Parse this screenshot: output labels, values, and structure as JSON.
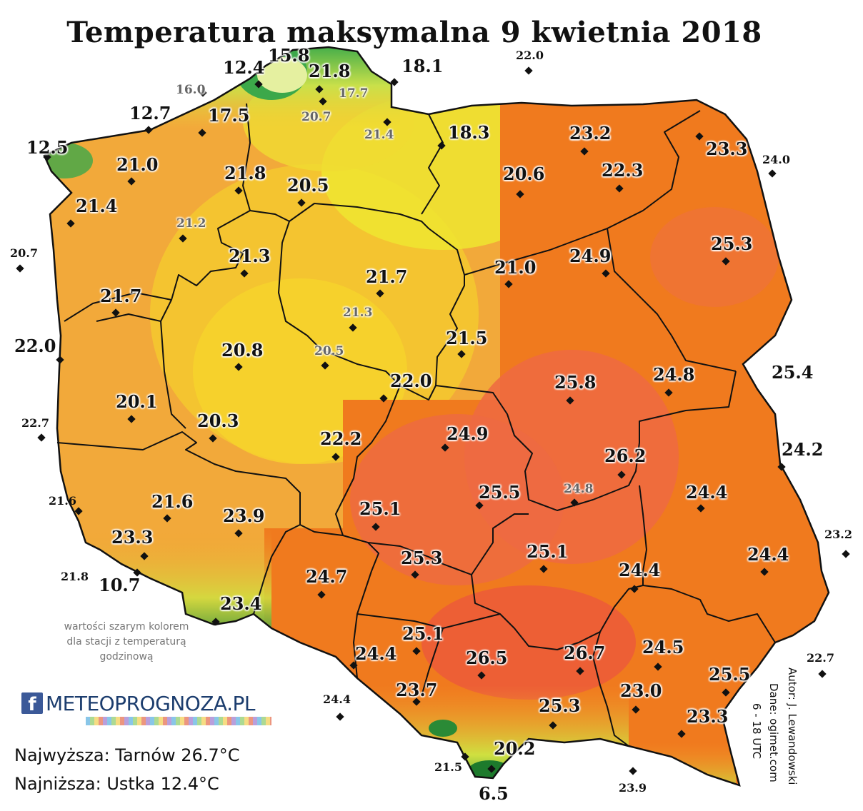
{
  "title": "Temperatura maksymalna 9 kwietnia 2018",
  "note": "wartości szarym kolorem dla stacji z temperaturą godzinową",
  "logo": {
    "icon": "f",
    "text": "METEOPROGNOZA.PL"
  },
  "stats": {
    "highest": "Najwyższa: Tarnów 26.7°C",
    "lowest": "Najniższa: Ustka 12.4°C"
  },
  "credits": {
    "author": "Autor: J. Lewandowski",
    "data": "Dane: ogimet.com",
    "hours": "6 - 18 UTC"
  },
  "colors": {
    "green": "#3fb34a",
    "yellow_green": "#e8e63a",
    "yellow": "#f4cc2e",
    "orange_light": "#f4a83a",
    "orange": "#f07a1e",
    "red_orange": "#ef6b45",
    "border": "#111111",
    "gray_value": "#666666"
  },
  "values": [
    {
      "t": "12.4",
      "style": "main"
    },
    {
      "t": "15.8",
      "style": "main"
    },
    {
      "t": "21.8",
      "style": "main"
    },
    {
      "t": "17.7",
      "style": "gray"
    },
    {
      "t": "18.1",
      "style": "big"
    },
    {
      "t": "22.0",
      "style": "small"
    },
    {
      "t": "16.0",
      "style": "gray"
    },
    {
      "t": "20.7",
      "style": "gray"
    },
    {
      "t": "12.7",
      "style": "main"
    },
    {
      "t": "17.5",
      "style": "main"
    },
    {
      "t": "21.4",
      "style": "gray"
    },
    {
      "t": "18.3",
      "style": "main"
    },
    {
      "t": "23.2",
      "style": "main"
    },
    {
      "t": "23.3",
      "style": "main"
    },
    {
      "t": "12.5",
      "style": "main"
    },
    {
      "t": "21.0",
      "style": "main"
    },
    {
      "t": "21.8",
      "style": "main"
    },
    {
      "t": "20.5",
      "style": "main"
    },
    {
      "t": "20.6",
      "style": "main"
    },
    {
      "t": "22.3",
      "style": "main"
    },
    {
      "t": "24.0",
      "style": "small"
    },
    {
      "t": "21.4",
      "style": "main"
    },
    {
      "t": "21.2",
      "style": "gray"
    },
    {
      "t": "25.3",
      "style": "main"
    },
    {
      "t": "20.7",
      "style": "small"
    },
    {
      "t": "21.3",
      "style": "main"
    },
    {
      "t": "21.7",
      "style": "main"
    },
    {
      "t": "21.0",
      "style": "main"
    },
    {
      "t": "24.9",
      "style": "main"
    },
    {
      "t": "21.7",
      "style": "main"
    },
    {
      "t": "21.3",
      "style": "gray"
    },
    {
      "t": "22.0",
      "style": "big"
    },
    {
      "t": "20.8",
      "style": "main"
    },
    {
      "t": "20.5",
      "style": "gray"
    },
    {
      "t": "21.5",
      "style": "main"
    },
    {
      "t": "22.0",
      "style": "main"
    },
    {
      "t": "25.8",
      "style": "main"
    },
    {
      "t": "24.8",
      "style": "main"
    },
    {
      "t": "25.4",
      "style": "big"
    },
    {
      "t": "20.1",
      "style": "main"
    },
    {
      "t": "22.7",
      "style": "small"
    },
    {
      "t": "20.3",
      "style": "main"
    },
    {
      "t": "22.2",
      "style": "main"
    },
    {
      "t": "24.9",
      "style": "main"
    },
    {
      "t": "26.2",
      "style": "main"
    },
    {
      "t": "24.2",
      "style": "big"
    },
    {
      "t": "21.6",
      "style": "small"
    },
    {
      "t": "21.6",
      "style": "main"
    },
    {
      "t": "23.9",
      "style": "main"
    },
    {
      "t": "25.1",
      "style": "main"
    },
    {
      "t": "25.5",
      "style": "main"
    },
    {
      "t": "24.8",
      "style": "gray"
    },
    {
      "t": "24.4",
      "style": "main"
    },
    {
      "t": "23.3",
      "style": "main"
    },
    {
      "t": "23.2",
      "style": "small"
    },
    {
      "t": "25.3",
      "style": "main"
    },
    {
      "t": "25.1",
      "style": "main"
    },
    {
      "t": "24.4",
      "style": "main"
    },
    {
      "t": "24.4",
      "style": "main"
    },
    {
      "t": "21.8",
      "style": "small"
    },
    {
      "t": "10.7",
      "style": "big"
    },
    {
      "t": "24.7",
      "style": "main"
    },
    {
      "t": "23.4",
      "style": "main"
    },
    {
      "t": "25.1",
      "style": "main"
    },
    {
      "t": "24.4",
      "style": "main"
    },
    {
      "t": "26.5",
      "style": "main"
    },
    {
      "t": "26.7",
      "style": "main"
    },
    {
      "t": "24.5",
      "style": "main"
    },
    {
      "t": "22.7",
      "style": "small"
    },
    {
      "t": "25.5",
      "style": "main"
    },
    {
      "t": "24.4",
      "style": "small"
    },
    {
      "t": "23.7",
      "style": "main"
    },
    {
      "t": "23.0",
      "style": "main"
    },
    {
      "t": "25.3",
      "style": "main"
    },
    {
      "t": "23.3",
      "style": "main"
    },
    {
      "t": "20.2",
      "style": "main"
    },
    {
      "t": "21.5",
      "style": "small"
    },
    {
      "t": "6.5",
      "style": "big"
    },
    {
      "t": "23.9",
      "style": "small"
    }
  ]
}
